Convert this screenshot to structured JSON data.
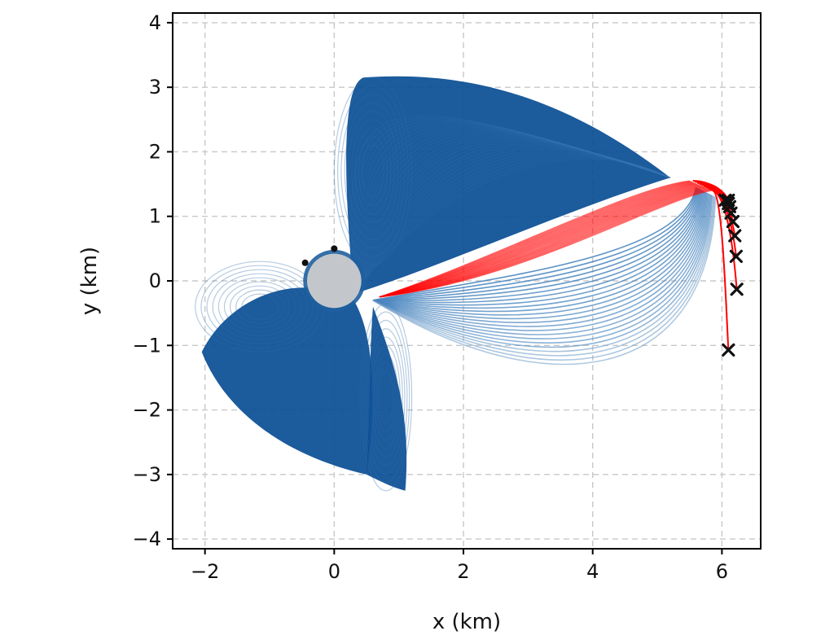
{
  "chart_data": {
    "type": "line",
    "title": "",
    "xlabel": "x (km)",
    "ylabel": "y (km)",
    "xlim": [
      -2.5,
      6.6
    ],
    "ylim": [
      -4.15,
      4.15
    ],
    "xticks": [
      -2,
      0,
      2,
      4,
      6
    ],
    "yticks": [
      -4,
      -3,
      -2,
      -1,
      0,
      1,
      2,
      3,
      4
    ],
    "xtick_labels": [
      "−2",
      "0",
      "2",
      "4",
      "6"
    ],
    "ytick_labels": [
      "−4",
      "−3",
      "−2",
      "−1",
      "0",
      "1",
      "2",
      "3",
      "4"
    ],
    "grid": true,
    "body": {
      "center": [
        0,
        0
      ],
      "radius": 0.42,
      "ring_radius": 0.48,
      "fill": "#c3c7cb",
      "ring": "#1f5f9e"
    },
    "colors": {
      "primary": "#0b4f94",
      "secondary": "#4a86c0",
      "final_approach": "#ff0000",
      "markers": "#111111"
    },
    "lobes": [
      {
        "name": "",
        "apex": [
          0.45,
          3.15
        ],
        "ellipse_center": [
          0.6,
          1.7
        ],
        "ellipse_radii": [
          0.6,
          1.45
        ]
      },
      {
        "name": "",
        "apex": [
          -2.05,
          -1.1
        ],
        "ellipse_center": [
          -1.15,
          -0.4
        ],
        "ellipse_radii": [
          1.0,
          0.7
        ]
      },
      {
        "name": "",
        "apex": [
          1.1,
          -3.25
        ],
        "ellipse_center": [
          0.8,
          -1.8
        ],
        "ellipse_radii": [
          0.4,
          1.45
        ]
      }
    ],
    "envelope_tip": [
      5.2,
      1.6
    ],
    "end_points": [
      [
        6.05,
        1.25
      ],
      [
        6.1,
        1.25
      ],
      [
        6.1,
        1.2
      ],
      [
        6.12,
        1.15
      ],
      [
        6.14,
        1.05
      ],
      [
        6.17,
        0.92
      ],
      [
        6.2,
        0.7
      ],
      [
        6.22,
        0.38
      ],
      [
        6.23,
        -0.13
      ],
      [
        6.1,
        -1.07
      ]
    ],
    "surface_markers": [
      [
        -0.45,
        0.28
      ],
      [
        0.0,
        0.5
      ]
    ]
  }
}
